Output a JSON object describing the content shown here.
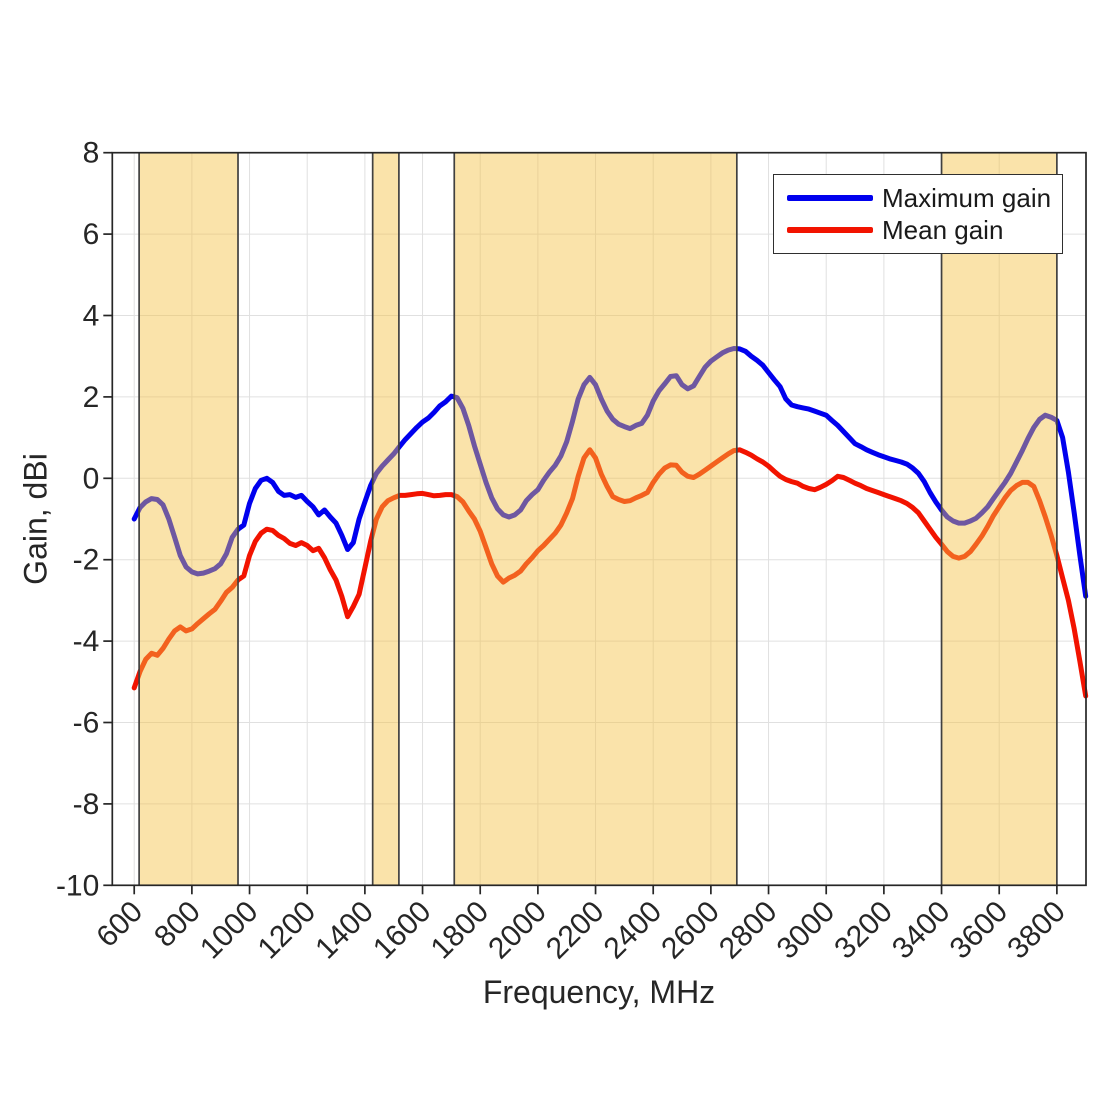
{
  "figure": {
    "x_axis_title": "Frequency, MHz",
    "y_axis_title": "Gain, dBi",
    "background_color": "#ffffff",
    "grid_color": "#e0e0e0",
    "axis_color": "#262626",
    "band_fill_color": "#f5c242",
    "band_fill_opacity": 0.45,
    "band_edge_color": "#404040"
  },
  "legend": {
    "items": [
      {
        "label": "Maximum gain",
        "color": "#0000ee"
      },
      {
        "label": "Mean gain",
        "color": "#f21300"
      }
    ]
  },
  "chart_data": {
    "type": "line",
    "title": "",
    "xlabel": "Frequency, MHz",
    "ylabel": "Gain, dBi",
    "xlim": [
      524,
      3901
    ],
    "ylim": [
      -10,
      8
    ],
    "xticks": [
      600,
      800,
      1000,
      1200,
      1400,
      1600,
      1800,
      2000,
      2200,
      2400,
      2600,
      2800,
      3000,
      3200,
      3400,
      3600,
      3800
    ],
    "yticks": [
      -10,
      -8,
      -6,
      -4,
      -2,
      0,
      2,
      4,
      6,
      8
    ],
    "grid": true,
    "legend_position": "top-right",
    "highlight_bands": {
      "color": "#f5c242",
      "opacity": 0.45,
      "edge_color": "#404040",
      "ranges_mhz": [
        [
          617,
          960
        ],
        [
          1427,
          1518
        ],
        [
          1710,
          2690
        ],
        [
          3400,
          3800
        ]
      ]
    },
    "x": [
      600,
      620,
      640,
      660,
      680,
      700,
      720,
      740,
      760,
      780,
      800,
      820,
      840,
      860,
      880,
      900,
      920,
      940,
      960,
      980,
      1000,
      1020,
      1040,
      1060,
      1080,
      1100,
      1120,
      1140,
      1160,
      1180,
      1200,
      1220,
      1240,
      1260,
      1280,
      1300,
      1320,
      1340,
      1360,
      1380,
      1400,
      1420,
      1440,
      1460,
      1480,
      1500,
      1520,
      1540,
      1560,
      1580,
      1600,
      1620,
      1640,
      1660,
      1680,
      1700,
      1720,
      1740,
      1760,
      1780,
      1800,
      1820,
      1840,
      1860,
      1880,
      1900,
      1920,
      1940,
      1960,
      1980,
      2000,
      2020,
      2040,
      2060,
      2080,
      2100,
      2120,
      2140,
      2160,
      2180,
      2200,
      2220,
      2240,
      2260,
      2280,
      2300,
      2320,
      2340,
      2360,
      2380,
      2400,
      2420,
      2440,
      2460,
      2480,
      2500,
      2520,
      2540,
      2560,
      2580,
      2600,
      2620,
      2640,
      2660,
      2680,
      2700,
      2720,
      2740,
      2760,
      2780,
      2800,
      2820,
      2840,
      2860,
      2880,
      2900,
      2920,
      2940,
      2960,
      2980,
      3000,
      3020,
      3040,
      3060,
      3080,
      3100,
      3120,
      3140,
      3160,
      3180,
      3200,
      3220,
      3240,
      3260,
      3280,
      3300,
      3320,
      3340,
      3360,
      3380,
      3400,
      3420,
      3440,
      3460,
      3480,
      3500,
      3520,
      3540,
      3560,
      3580,
      3600,
      3620,
      3640,
      3660,
      3680,
      3700,
      3720,
      3740,
      3760,
      3780,
      3800,
      3820,
      3840,
      3860,
      3880,
      3900
    ],
    "series": [
      {
        "name": "Maximum gain",
        "color": "#0000ee",
        "values": [
          -1.0,
          -0.72,
          -0.58,
          -0.5,
          -0.52,
          -0.65,
          -1.0,
          -1.45,
          -1.9,
          -2.18,
          -2.3,
          -2.35,
          -2.33,
          -2.28,
          -2.22,
          -2.1,
          -1.85,
          -1.45,
          -1.25,
          -1.15,
          -0.62,
          -0.25,
          -0.05,
          0.0,
          -0.1,
          -0.32,
          -0.42,
          -0.4,
          -0.47,
          -0.42,
          -0.57,
          -0.7,
          -0.9,
          -0.78,
          -0.95,
          -1.1,
          -1.4,
          -1.75,
          -1.58,
          -1.0,
          -0.58,
          -0.18,
          0.12,
          0.3,
          0.45,
          0.6,
          0.78,
          0.95,
          1.1,
          1.25,
          1.38,
          1.48,
          1.62,
          1.78,
          1.88,
          2.02,
          1.98,
          1.72,
          1.3,
          0.8,
          0.35,
          -0.1,
          -0.48,
          -0.75,
          -0.9,
          -0.95,
          -0.9,
          -0.78,
          -0.55,
          -0.4,
          -0.28,
          -0.05,
          0.15,
          0.32,
          0.55,
          0.9,
          1.4,
          1.95,
          2.3,
          2.48,
          2.3,
          1.95,
          1.65,
          1.45,
          1.33,
          1.27,
          1.22,
          1.3,
          1.35,
          1.55,
          1.9,
          2.15,
          2.32,
          2.5,
          2.52,
          2.3,
          2.2,
          2.27,
          2.5,
          2.73,
          2.88,
          2.98,
          3.08,
          3.15,
          3.19,
          3.18,
          3.12,
          3.0,
          2.9,
          2.78,
          2.6,
          2.42,
          2.25,
          1.95,
          1.8,
          1.76,
          1.73,
          1.7,
          1.65,
          1.6,
          1.55,
          1.42,
          1.3,
          1.15,
          1.0,
          0.85,
          0.78,
          0.7,
          0.64,
          0.58,
          0.53,
          0.48,
          0.44,
          0.4,
          0.35,
          0.25,
          0.12,
          -0.08,
          -0.35,
          -0.58,
          -0.78,
          -0.95,
          -1.05,
          -1.1,
          -1.1,
          -1.05,
          -0.98,
          -0.85,
          -0.7,
          -0.5,
          -0.3,
          -0.1,
          0.12,
          0.4,
          0.68,
          0.98,
          1.25,
          1.45,
          1.55,
          1.5,
          1.42,
          1.0,
          0.15,
          -0.85,
          -1.9,
          -2.9
        ]
      },
      {
        "name": "Mean gain",
        "color": "#f21300",
        "values": [
          -5.15,
          -4.75,
          -4.45,
          -4.3,
          -4.35,
          -4.18,
          -3.95,
          -3.75,
          -3.65,
          -3.75,
          -3.7,
          -3.57,
          -3.45,
          -3.33,
          -3.22,
          -3.02,
          -2.8,
          -2.68,
          -2.5,
          -2.4,
          -1.9,
          -1.55,
          -1.35,
          -1.25,
          -1.28,
          -1.4,
          -1.48,
          -1.6,
          -1.65,
          -1.58,
          -1.65,
          -1.78,
          -1.72,
          -1.95,
          -2.25,
          -2.5,
          -2.9,
          -3.4,
          -3.15,
          -2.85,
          -2.2,
          -1.55,
          -1.0,
          -0.7,
          -0.55,
          -0.48,
          -0.42,
          -0.42,
          -0.4,
          -0.38,
          -0.37,
          -0.4,
          -0.43,
          -0.42,
          -0.4,
          -0.4,
          -0.45,
          -0.58,
          -0.8,
          -1.0,
          -1.3,
          -1.7,
          -2.1,
          -2.4,
          -2.55,
          -2.45,
          -2.38,
          -2.28,
          -2.1,
          -1.95,
          -1.78,
          -1.65,
          -1.5,
          -1.35,
          -1.15,
          -0.85,
          -0.5,
          0.05,
          0.5,
          0.7,
          0.5,
          0.1,
          -0.2,
          -0.45,
          -0.52,
          -0.57,
          -0.55,
          -0.48,
          -0.42,
          -0.35,
          -0.1,
          0.1,
          0.25,
          0.33,
          0.32,
          0.15,
          0.05,
          0.02,
          0.1,
          0.2,
          0.3,
          0.4,
          0.5,
          0.6,
          0.68,
          0.7,
          0.64,
          0.57,
          0.48,
          0.4,
          0.3,
          0.17,
          0.05,
          -0.03,
          -0.08,
          -0.12,
          -0.2,
          -0.25,
          -0.28,
          -0.22,
          -0.15,
          -0.06,
          0.05,
          0.02,
          -0.05,
          -0.12,
          -0.18,
          -0.25,
          -0.3,
          -0.35,
          -0.4,
          -0.45,
          -0.5,
          -0.55,
          -0.62,
          -0.72,
          -0.85,
          -1.05,
          -1.25,
          -1.45,
          -1.62,
          -1.8,
          -1.92,
          -1.96,
          -1.92,
          -1.8,
          -1.62,
          -1.42,
          -1.18,
          -0.92,
          -0.7,
          -0.48,
          -0.3,
          -0.18,
          -0.1,
          -0.1,
          -0.2,
          -0.55,
          -0.95,
          -1.4,
          -1.9,
          -2.45,
          -3.0,
          -3.7,
          -4.5,
          -5.35
        ]
      }
    ]
  }
}
